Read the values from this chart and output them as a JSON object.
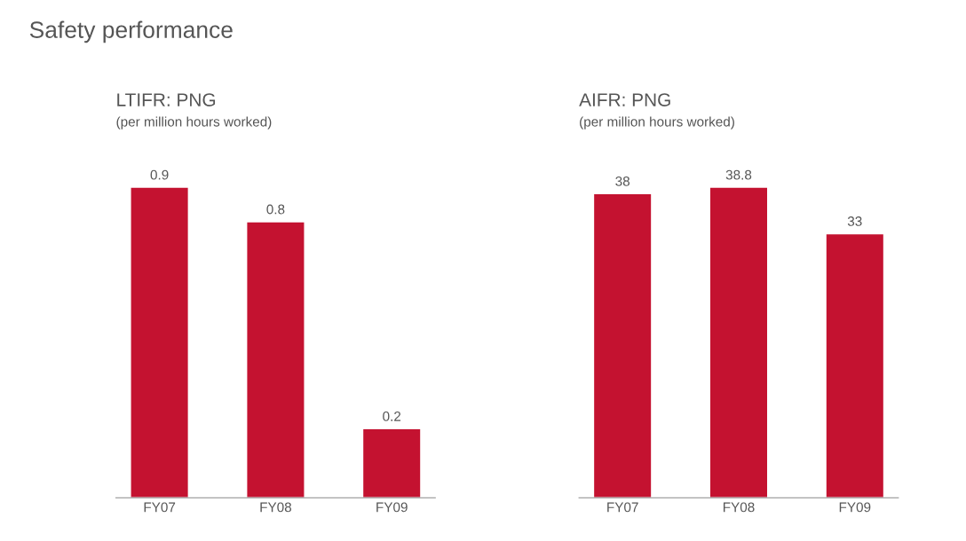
{
  "chart_data": [
    {
      "type": "bar",
      "title": "LTIFR: PNG",
      "subtitle": "(per million hours worked)",
      "annotations": [
        "Safety performance"
      ],
      "categories": [
        "FY07",
        "FY08",
        "FY09"
      ],
      "values": [
        0.9,
        0.8,
        0.2
      ],
      "color": "#c41230",
      "data_labels": true,
      "grid": false,
      "legend": false
    },
    {
      "type": "bar",
      "title": "AIFR: PNG",
      "subtitle": "(per million hours worked)",
      "categories": [
        "FY07",
        "FY08",
        "FY09"
      ],
      "values": [
        38,
        38.8,
        33
      ],
      "color": "#c41230",
      "data_labels": true,
      "grid": false,
      "legend": false
    }
  ]
}
